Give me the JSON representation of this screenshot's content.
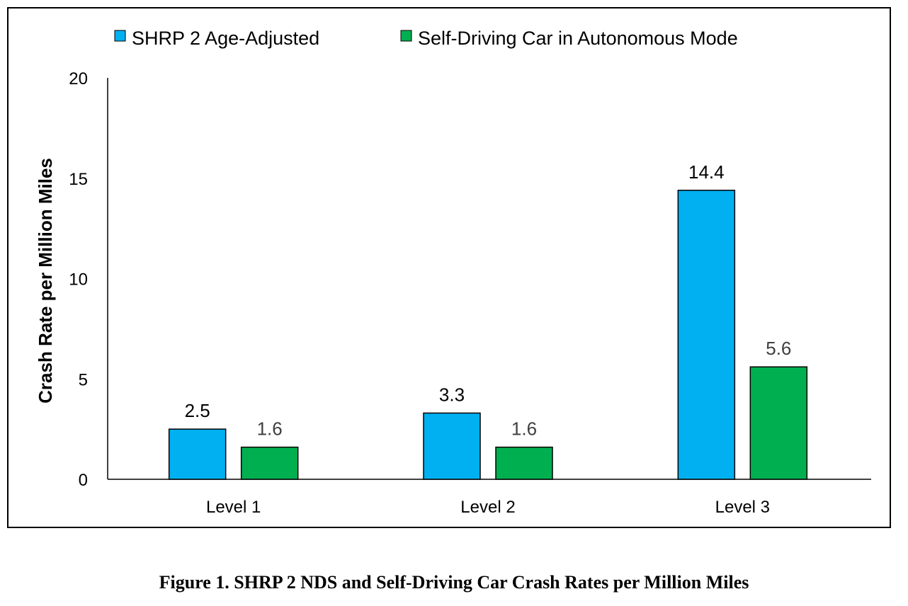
{
  "chart_data": {
    "type": "bar",
    "categories": [
      "Level 1",
      "Level 2",
      "Level 3"
    ],
    "series": [
      {
        "name": "SHRP 2 Age-Adjusted",
        "values": [
          2.5,
          3.3,
          14.4
        ],
        "color": "#00b0f0",
        "label_color": "#000000"
      },
      {
        "name": "Self-Driving Car in Autonomous Mode",
        "values": [
          1.6,
          1.6,
          5.6
        ],
        "color": "#00b050",
        "label_color": "#404040"
      }
    ],
    "data_labels": [
      [
        "2.5",
        "3.3",
        "14.4"
      ],
      [
        "1.6",
        "1.6",
        "5.6"
      ]
    ],
    "title": "",
    "xlabel": "",
    "ylabel": "Crash Rate per Million Miles",
    "ylim": [
      0,
      20
    ],
    "yticks": [
      0,
      5,
      10,
      15,
      20
    ],
    "ytick_labels": [
      "0",
      "5",
      "10",
      "15",
      "20"
    ],
    "grid": false,
    "legend_position": "top"
  },
  "caption": "Figure 1. SHRP 2 NDS and Self-Driving Car Crash Rates per Million Miles"
}
